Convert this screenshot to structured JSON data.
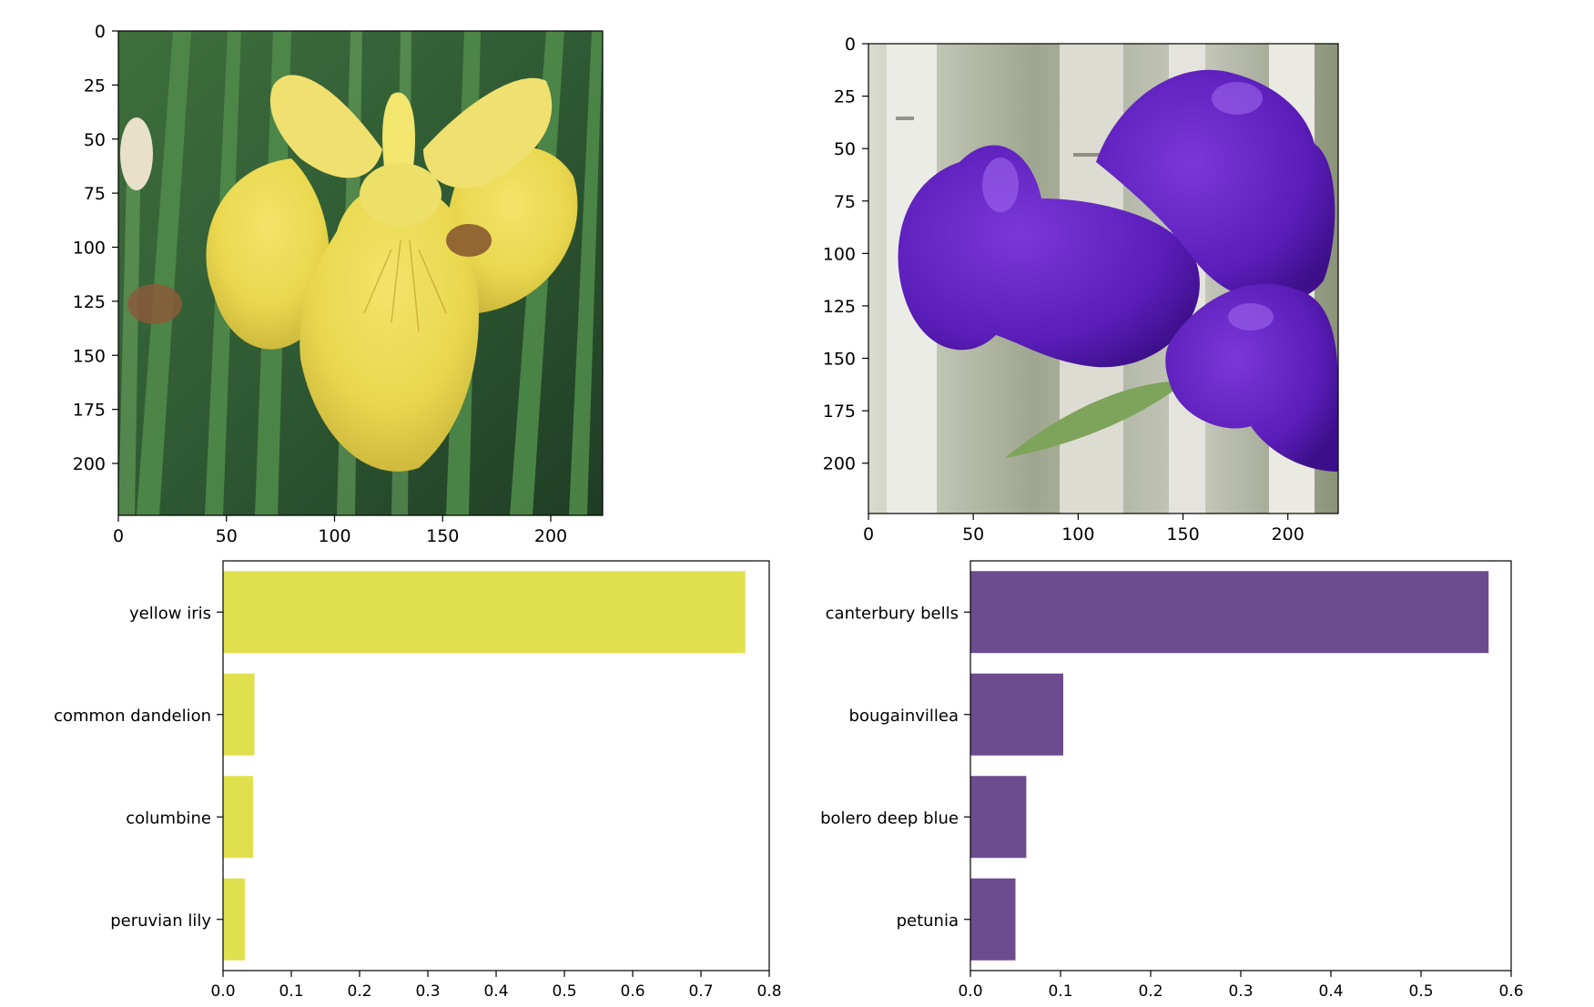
{
  "figure": {
    "colors": {
      "yellow_bars": "#e0e04e",
      "purple_bars": "#6c4c8f",
      "axes": "#000000",
      "background": "#ffffff"
    }
  },
  "chart_data": [
    {
      "type": "image",
      "image_content": "yellow iris flower photo",
      "xlim": [
        0,
        224
      ],
      "ylim": [
        224,
        0
      ],
      "xticks": [
        "0",
        "50",
        "100",
        "150",
        "200"
      ],
      "yticks": [
        "0",
        "25",
        "50",
        "75",
        "100",
        "125",
        "150",
        "175",
        "200"
      ],
      "title": "",
      "xlabel": "",
      "ylabel": ""
    },
    {
      "type": "image",
      "image_content": "purple canterbury bells flower photo",
      "xlim": [
        0,
        224
      ],
      "ylim": [
        224,
        0
      ],
      "xticks": [
        "0",
        "50",
        "100",
        "150",
        "200"
      ],
      "yticks": [
        "0",
        "25",
        "50",
        "75",
        "100",
        "125",
        "150",
        "175",
        "200"
      ],
      "title": "",
      "xlabel": "",
      "ylabel": ""
    },
    {
      "type": "bar",
      "orientation": "horizontal",
      "categories": [
        "yellow iris",
        "common dandelion",
        "columbine",
        "peruvian lily"
      ],
      "values": [
        0.765,
        0.046,
        0.044,
        0.032
      ],
      "xlim": [
        0,
        0.8
      ],
      "xticks": [
        "0.0",
        "0.1",
        "0.2",
        "0.3",
        "0.4",
        "0.5",
        "0.6",
        "0.7",
        "0.8"
      ],
      "color": "#e0e04e",
      "title": "",
      "xlabel": "",
      "ylabel": "",
      "grid": false
    },
    {
      "type": "bar",
      "orientation": "horizontal",
      "categories": [
        "canterbury bells",
        "bougainvillea",
        "bolero deep blue",
        "petunia"
      ],
      "values": [
        0.575,
        0.103,
        0.062,
        0.05
      ],
      "xlim": [
        0,
        0.6
      ],
      "xticks": [
        "0.0",
        "0.1",
        "0.2",
        "0.3",
        "0.4",
        "0.5",
        "0.6"
      ],
      "color": "#6c4c8f",
      "title": "",
      "xlabel": "",
      "ylabel": "",
      "grid": false
    }
  ]
}
